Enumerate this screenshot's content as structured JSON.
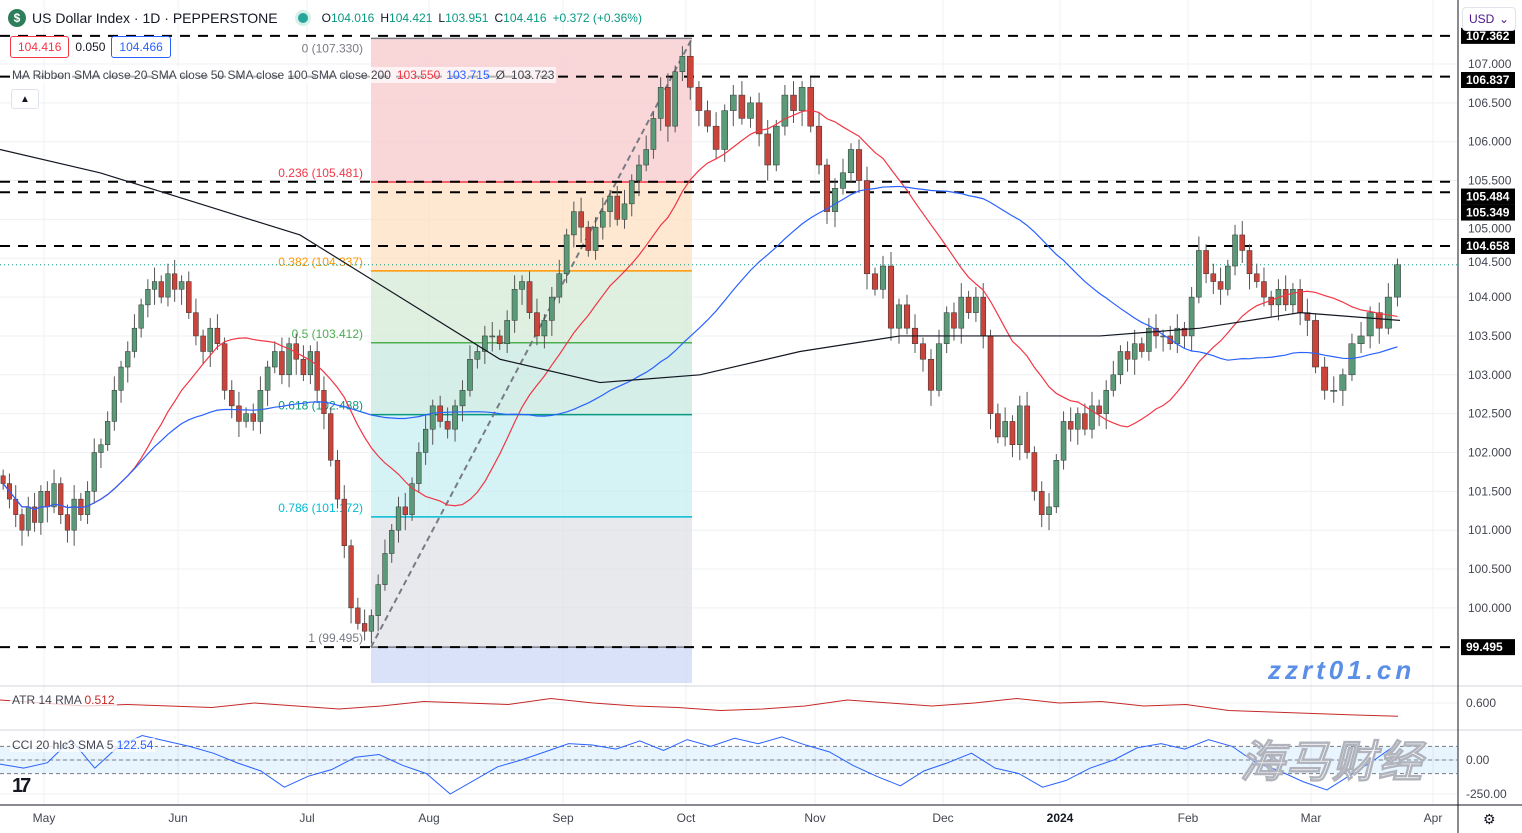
{
  "header": {
    "logo_letter": "$",
    "title": "US Dollar Index · 1D · PEPPERSTONE",
    "o_label": "O",
    "o": "104.016",
    "h_label": "H",
    "h": "104.421",
    "l_label": "L",
    "l": "103.951",
    "c_label": "C",
    "c": "104.416",
    "change": "+0.372 (+0.36%)"
  },
  "badges": {
    "bid": "104.416",
    "spread": "0.050",
    "ask": "104.466"
  },
  "legend": {
    "text": "MA Ribbon SMA close 20 SMA close 50 SMA close 100 SMA close 200",
    "v1": "103.550",
    "v2": "103.715",
    "v3": "Ø",
    "v4": "103.723"
  },
  "collapse_icon": "chevron-up-icon",
  "currency": "USD",
  "atr": {
    "label": "ATR 14 RMA",
    "value": "0.512"
  },
  "cci": {
    "label": "CCI 20 hlc3 SMA 5",
    "value": "122.54"
  },
  "watermark": {
    "cn": "海马财经",
    "url": "zzrt01.cn"
  },
  "colors": {
    "up": "#5b9a78",
    "down": "#c9443a",
    "sma20": "#f23645",
    "sma50": "#2962ff",
    "sma200": "#131722",
    "atr": "#c62828",
    "cci": "#2962ff"
  },
  "chart_data": {
    "type": "candlestick",
    "price_ticks": [
      "107.000",
      "106.500",
      "106.000",
      "105.500",
      "105.000",
      "104.500",
      "104.000",
      "103.500",
      "103.000",
      "102.500",
      "102.000",
      "101.500",
      "101.000",
      "100.500",
      "100.000"
    ],
    "price_range": [
      99.0,
      107.4
    ],
    "x_ticks": [
      "May",
      "Jun",
      "Jul",
      "Aug",
      "Sep",
      "Oct",
      "Nov",
      "Dec",
      "2024",
      "Feb",
      "Mar",
      "Apr"
    ],
    "months": [
      {
        "label": "Apr",
        "closes": [
          101.6,
          101.4,
          101.2,
          101.0,
          101.3,
          101.1,
          101.5
        ]
      },
      {
        "label": "May",
        "closes": [
          101.3,
          101.6,
          101.2,
          101.0,
          101.4,
          101.2,
          101.5,
          102.0,
          102.1,
          102.4,
          102.8,
          103.1,
          103.3,
          103.6,
          103.9,
          104.1,
          104.2,
          104.0,
          104.3,
          104.1
        ]
      },
      {
        "label": "Jun",
        "closes": [
          104.2,
          103.8,
          103.5,
          103.3,
          103.6,
          103.4,
          102.8,
          102.6,
          102.4,
          102.5,
          102.4,
          102.8,
          103.1,
          103.3,
          103.0,
          103.4,
          103.2,
          103.0
        ]
      },
      {
        "label": "Jul",
        "closes": [
          103.3,
          102.8,
          102.5,
          101.9,
          101.4,
          100.8,
          100.0,
          99.8,
          99.7,
          99.9,
          100.3,
          100.7,
          101.0,
          101.3,
          101.2,
          101.6,
          102.0,
          102.3
        ]
      },
      {
        "label": "Aug",
        "closes": [
          102.6,
          102.4,
          102.3,
          102.6,
          102.8,
          103.2,
          103.3,
          103.5,
          103.5,
          103.4,
          103.7,
          104.1,
          104.2,
          103.8,
          103.5,
          103.7,
          104.0,
          104.3
        ]
      },
      {
        "label": "Sep",
        "closes": [
          104.8,
          105.1,
          104.9,
          104.6,
          104.9,
          105.1,
          105.3,
          105.0,
          105.2,
          105.5,
          105.7,
          105.9,
          106.3,
          106.7,
          106.2,
          106.9,
          107.1
        ]
      },
      {
        "label": "Oct",
        "closes": [
          106.7,
          106.4,
          106.2,
          105.9,
          106.4,
          106.6,
          106.3,
          106.5,
          106.1,
          105.7,
          106.2,
          106.6,
          106.4,
          106.7,
          106.2
        ]
      },
      {
        "label": "Nov",
        "closes": [
          105.7,
          105.1,
          105.4,
          105.6,
          105.9,
          105.5,
          104.3,
          104.1,
          104.4,
          103.6,
          103.9,
          103.6,
          103.4,
          103.2,
          102.8,
          103.4
        ]
      },
      {
        "label": "Dec",
        "closes": [
          103.8,
          103.6,
          104.0,
          103.8,
          104.0,
          103.5,
          102.5,
          102.2,
          102.4,
          102.1,
          102.6,
          102.0,
          101.5,
          101.2,
          101.3,
          101.9
        ]
      },
      {
        "label": "Jan",
        "closes": [
          102.4,
          102.3,
          102.5,
          102.3,
          102.6,
          102.5,
          102.8,
          103.0,
          103.3,
          103.2,
          103.4,
          103.3,
          103.6,
          103.5,
          103.5,
          103.4,
          103.6,
          103.5
        ]
      },
      {
        "label": "Feb",
        "closes": [
          104.0,
          104.6,
          104.3,
          104.2,
          104.1,
          104.4,
          104.8,
          104.6,
          104.3,
          104.2,
          104.0,
          103.9,
          104.1,
          103.9,
          104.1,
          103.8,
          103.7
        ]
      },
      {
        "label": "Mar",
        "closes": [
          103.1,
          102.8,
          102.8,
          103.0,
          103.4,
          103.5,
          103.8,
          103.6,
          104.0,
          104.416
        ]
      }
    ],
    "sma200_monthly": [
      105.9,
      105.6,
      105.2,
      104.8,
      104.0,
      103.2,
      102.9,
      103.0,
      103.3,
      103.5,
      103.5,
      103.5,
      103.6,
      103.8,
      103.7
    ],
    "fib": {
      "levels": [
        {
          "ratio": "0",
          "price": 107.33,
          "label": "0 (107.330)",
          "color": "#787b86",
          "fill": "#f7c9cc"
        },
        {
          "ratio": "0.236",
          "price": 105.481,
          "label": "0.236 (105.481)",
          "color": "#f23645",
          "fill": "#fde0c2"
        },
        {
          "ratio": "0.382",
          "price": 104.337,
          "label": "0.382 (104.337)",
          "color": "#ff9800",
          "fill": "#d6ebd6"
        },
        {
          "ratio": "0.5",
          "price": 103.412,
          "label": "0.5 (103.412)",
          "color": "#4caf50",
          "fill": "#c8e8e0"
        },
        {
          "ratio": "0.618",
          "price": 102.488,
          "label": "0.618 (102.488)",
          "color": "#089981",
          "fill": "#c7eef1"
        },
        {
          "ratio": "0.786",
          "price": 101.172,
          "label": "0.786 (101.172)",
          "color": "#00bcd4",
          "fill": "#e0e1e5"
        },
        {
          "ratio": "1",
          "price": 99.495,
          "label": "1 (99.495)",
          "color": "#787b86",
          "fill": "#ccd8f7"
        }
      ]
    },
    "horizontal_levels": [
      "107.362",
      "106.837",
      "105.484",
      "105.349",
      "104.658",
      "99.495"
    ],
    "last_price": 104.416,
    "atr_tick": "0.600",
    "atr_values": [
      0.62,
      0.6,
      0.58,
      0.59,
      0.58,
      0.57,
      0.6,
      0.58,
      0.56,
      0.58,
      0.61,
      0.6,
      0.59,
      0.63,
      0.6,
      0.58,
      0.57,
      0.55,
      0.56,
      0.58,
      0.62,
      0.6,
      0.58,
      0.6,
      0.63,
      0.6,
      0.61,
      0.58,
      0.59,
      0.55,
      0.54,
      0.53,
      0.52,
      0.512
    ],
    "cci_ticks": [
      "0.00",
      "-250.00"
    ],
    "cci_values": [
      -30,
      -60,
      -20,
      150,
      -60,
      100,
      180,
      140,
      100,
      50,
      -20,
      -80,
      -200,
      -120,
      -70,
      20,
      40,
      -40,
      -100,
      -250,
      -150,
      -50,
      0,
      60,
      120,
      110,
      80,
      140,
      70,
      150,
      100,
      160,
      120,
      170,
      110,
      60,
      -40,
      -120,
      -190,
      -80,
      -20,
      50,
      -60,
      -100,
      -200,
      -150,
      -60,
      0,
      90,
      120,
      80,
      150,
      100,
      -20,
      -80,
      -160,
      -220,
      -110,
      0,
      122.54
    ]
  }
}
